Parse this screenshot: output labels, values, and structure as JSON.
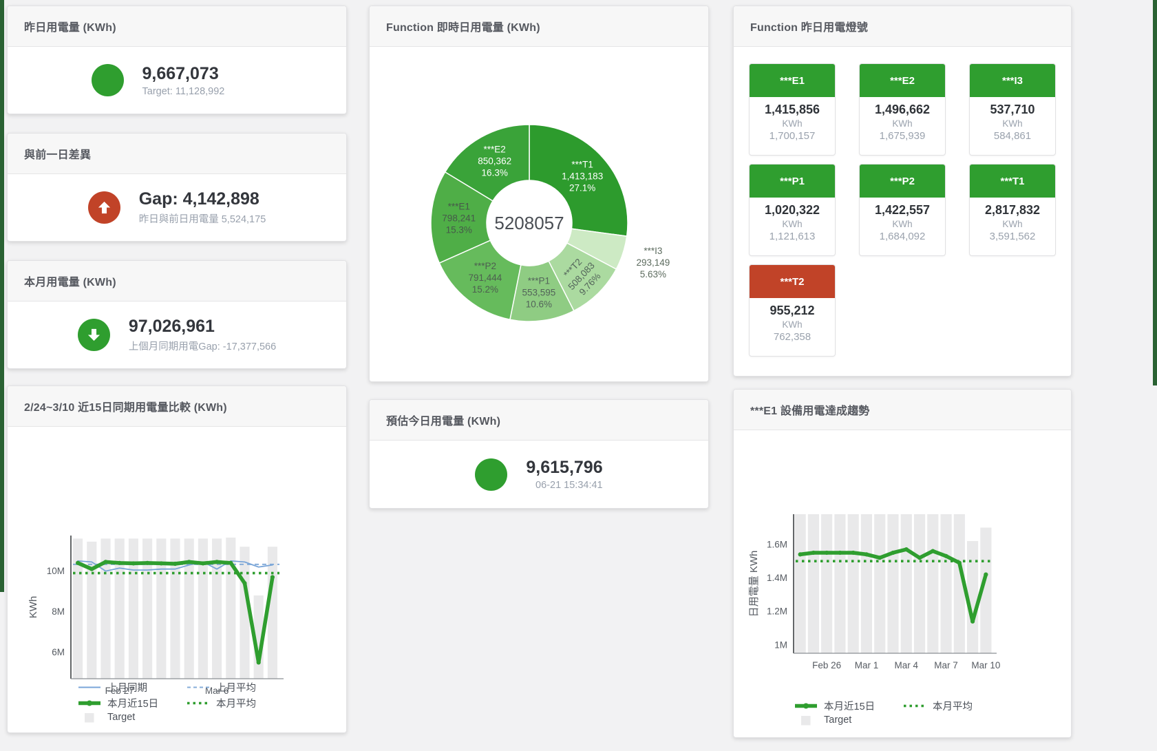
{
  "colors": {
    "green": "#2f9e2f",
    "red": "#c14328",
    "blue": "#79a5d8",
    "target_bar": "#e9e9ea",
    "edge_green": "#2a6233"
  },
  "cards": {
    "yesterday": {
      "title": "昨日用電量 (KWh)",
      "value": "9,667,073",
      "subtext": "Target: 11,128,992",
      "status_color": "#2f9e2f"
    },
    "gap_prev_day": {
      "title": "與前一日差異",
      "value": "Gap: 4,142,898",
      "subtext": "昨日與前日用電量 5,524,175",
      "status_color": "#c14328",
      "direction": "up"
    },
    "month": {
      "title": "本月用電量 (KWh)",
      "value": "97,026,961",
      "subtext": "上個月同期用電Gap: -17,377,566",
      "status_color": "#2f9e2f",
      "direction": "down"
    },
    "estimate_today": {
      "title": "預估今日用電量 (KWh)",
      "value": "9,615,796",
      "subtext": "06-21 15:34:41",
      "status_color": "#2f9e2f"
    },
    "lights": {
      "title": "Function 昨日用電燈號",
      "tiles": [
        {
          "name": "***E1",
          "value": "1,415,856",
          "unit": "KWh",
          "target": "1,700,157",
          "status": "green"
        },
        {
          "name": "***E2",
          "value": "1,496,662",
          "unit": "KWh",
          "target": "1,675,939",
          "status": "green"
        },
        {
          "name": "***I3",
          "value": "537,710",
          "unit": "KWh",
          "target": "584,861",
          "status": "green"
        },
        {
          "name": "***P1",
          "value": "1,020,322",
          "unit": "KWh",
          "target": "1,121,613",
          "status": "green"
        },
        {
          "name": "***P2",
          "value": "1,422,557",
          "unit": "KWh",
          "target": "1,684,092",
          "status": "green"
        },
        {
          "name": "***T1",
          "value": "2,817,832",
          "unit": "KWh",
          "target": "3,591,562",
          "status": "green"
        },
        {
          "name": "***T2",
          "value": "955,212",
          "unit": "KWh",
          "target": "762,358",
          "status": "red"
        }
      ]
    }
  },
  "chart_data": [
    {
      "id": "donut",
      "type": "pie",
      "title": "Function 即時日用電量 (KWh)",
      "center_total": "5208057",
      "legend_position": "none",
      "slices": [
        {
          "name": "***T1",
          "value": 1413183,
          "value_label": "1,413,183",
          "pct": "27.1%",
          "color": "#2d9b2d",
          "label_pos": "inside",
          "label_color": "#ffffff"
        },
        {
          "name": "***I3",
          "value": 293149,
          "value_label": "293,149",
          "pct": "5.63%",
          "color": "#cdeac4",
          "label_pos": "outside",
          "label_color": "#5c6b5e"
        },
        {
          "name": "***T2",
          "value": 508083,
          "value_label": "508,083",
          "pct": "9.76%",
          "color": "#abdaa0",
          "label_pos": "inside-rotated",
          "label_color": "#53645a",
          "label_rotate": -47
        },
        {
          "name": "***P1",
          "value": 553595,
          "value_label": "553,595",
          "pct": "10.6%",
          "color": "#8fcc83",
          "label_pos": "inside",
          "label_color": "#53645a"
        },
        {
          "name": "***P2",
          "value": 791444,
          "value_label": "791,444",
          "pct": "15.2%",
          "color": "#66bb5c",
          "label_pos": "inside",
          "label_color": "#4d5e50"
        },
        {
          "name": "***E1",
          "value": 798241,
          "value_label": "798,241",
          "pct": "15.3%",
          "color": "#4fae47",
          "label_pos": "inside",
          "label_color": "#46584a"
        },
        {
          "name": "***E2",
          "value": 850362,
          "value_label": "850,362",
          "pct": "16.3%",
          "color": "#3aa339",
          "label_pos": "inside",
          "label_color": "#ffffff"
        }
      ]
    },
    {
      "id": "compare15",
      "type": "line+bar",
      "title": "2/24~3/10 近15日同期用電量比較 (KWh)",
      "ylabel": "KWh",
      "ylim": [
        4.7,
        11.75
      ],
      "n": 15,
      "grid": false,
      "y_ticks": [
        {
          "v": 6,
          "label": "6M"
        },
        {
          "v": 8,
          "label": "8M"
        },
        {
          "v": 10,
          "label": "10M"
        }
      ],
      "x_ticks": [
        {
          "i": 3,
          "label": "Feb 27"
        },
        {
          "i": 10,
          "label": "Mar 6"
        }
      ],
      "series": [
        {
          "name": "Target",
          "type": "bar",
          "color": "#e9e9ea",
          "values": [
            11.6,
            11.45,
            11.6,
            11.6,
            11.6,
            11.6,
            11.6,
            11.6,
            11.6,
            11.6,
            11.6,
            11.65,
            11.2,
            8.8,
            11.2
          ]
        },
        {
          "name": "上月同期",
          "type": "line",
          "color": "#79a5d8",
          "width": 1.8,
          "values": [
            10.5,
            10.45,
            10.0,
            10.15,
            10.05,
            10.05,
            10.1,
            10.1,
            10.3,
            10.45,
            10.1,
            10.5,
            10.45,
            10.2,
            10.3
          ]
        },
        {
          "name": "上月平均",
          "type": "dashed",
          "color": "#85add9",
          "value": 10.33
        },
        {
          "name": "本月近15日",
          "type": "line",
          "color": "#2f9e2f",
          "width": 5.5,
          "markers": true,
          "values": [
            10.4,
            10.1,
            10.45,
            10.4,
            10.38,
            10.4,
            10.38,
            10.36,
            10.45,
            10.38,
            10.45,
            10.4,
            9.4,
            5.5,
            9.7
          ]
        },
        {
          "name": "本月平均",
          "type": "dotted",
          "color": "#2f9e2f",
          "value": 9.9
        }
      ],
      "legend_rows": [
        [
          "上月同期",
          "上月平均"
        ],
        [
          "本月近15日",
          "本月平均"
        ],
        [
          "Target"
        ]
      ]
    },
    {
      "id": "e1trend",
      "type": "line+bar",
      "title": "***E1 設備用電達成趨勢",
      "ylabel": "日用電量 KWh",
      "ylim": [
        0.95,
        1.78
      ],
      "n": 15,
      "grid": false,
      "y_ticks": [
        {
          "v": 1,
          "label": "1M"
        },
        {
          "v": 1.2,
          "label": "1.2M"
        },
        {
          "v": 1.4,
          "label": "1.4M"
        },
        {
          "v": 1.6,
          "label": "1.6M"
        }
      ],
      "x_ticks": [
        {
          "i": 2,
          "label": "Feb 26"
        },
        {
          "i": 5,
          "label": "Mar 1"
        },
        {
          "i": 8,
          "label": "Mar 4"
        },
        {
          "i": 11,
          "label": "Mar 7"
        },
        {
          "i": 14,
          "label": "Mar 10"
        }
      ],
      "series": [
        {
          "name": "Target",
          "type": "bar",
          "color": "#e9e9ea",
          "values": [
            1.78,
            1.78,
            1.78,
            1.78,
            1.78,
            1.78,
            1.78,
            1.78,
            1.78,
            1.78,
            1.78,
            1.78,
            1.78,
            1.62,
            1.7
          ]
        },
        {
          "name": "本月近15日",
          "type": "line",
          "color": "#2f9e2f",
          "width": 5.5,
          "markers": true,
          "values": [
            1.54,
            1.55,
            1.55,
            1.55,
            1.55,
            1.54,
            1.52,
            1.55,
            1.57,
            1.52,
            1.56,
            1.53,
            1.49,
            1.14,
            1.42
          ]
        },
        {
          "name": "本月平均",
          "type": "dotted",
          "color": "#2f9e2f",
          "value": 1.5
        }
      ],
      "legend_rows": [
        [
          "本月近15日",
          "本月平均"
        ],
        [
          "Target"
        ]
      ]
    }
  ]
}
